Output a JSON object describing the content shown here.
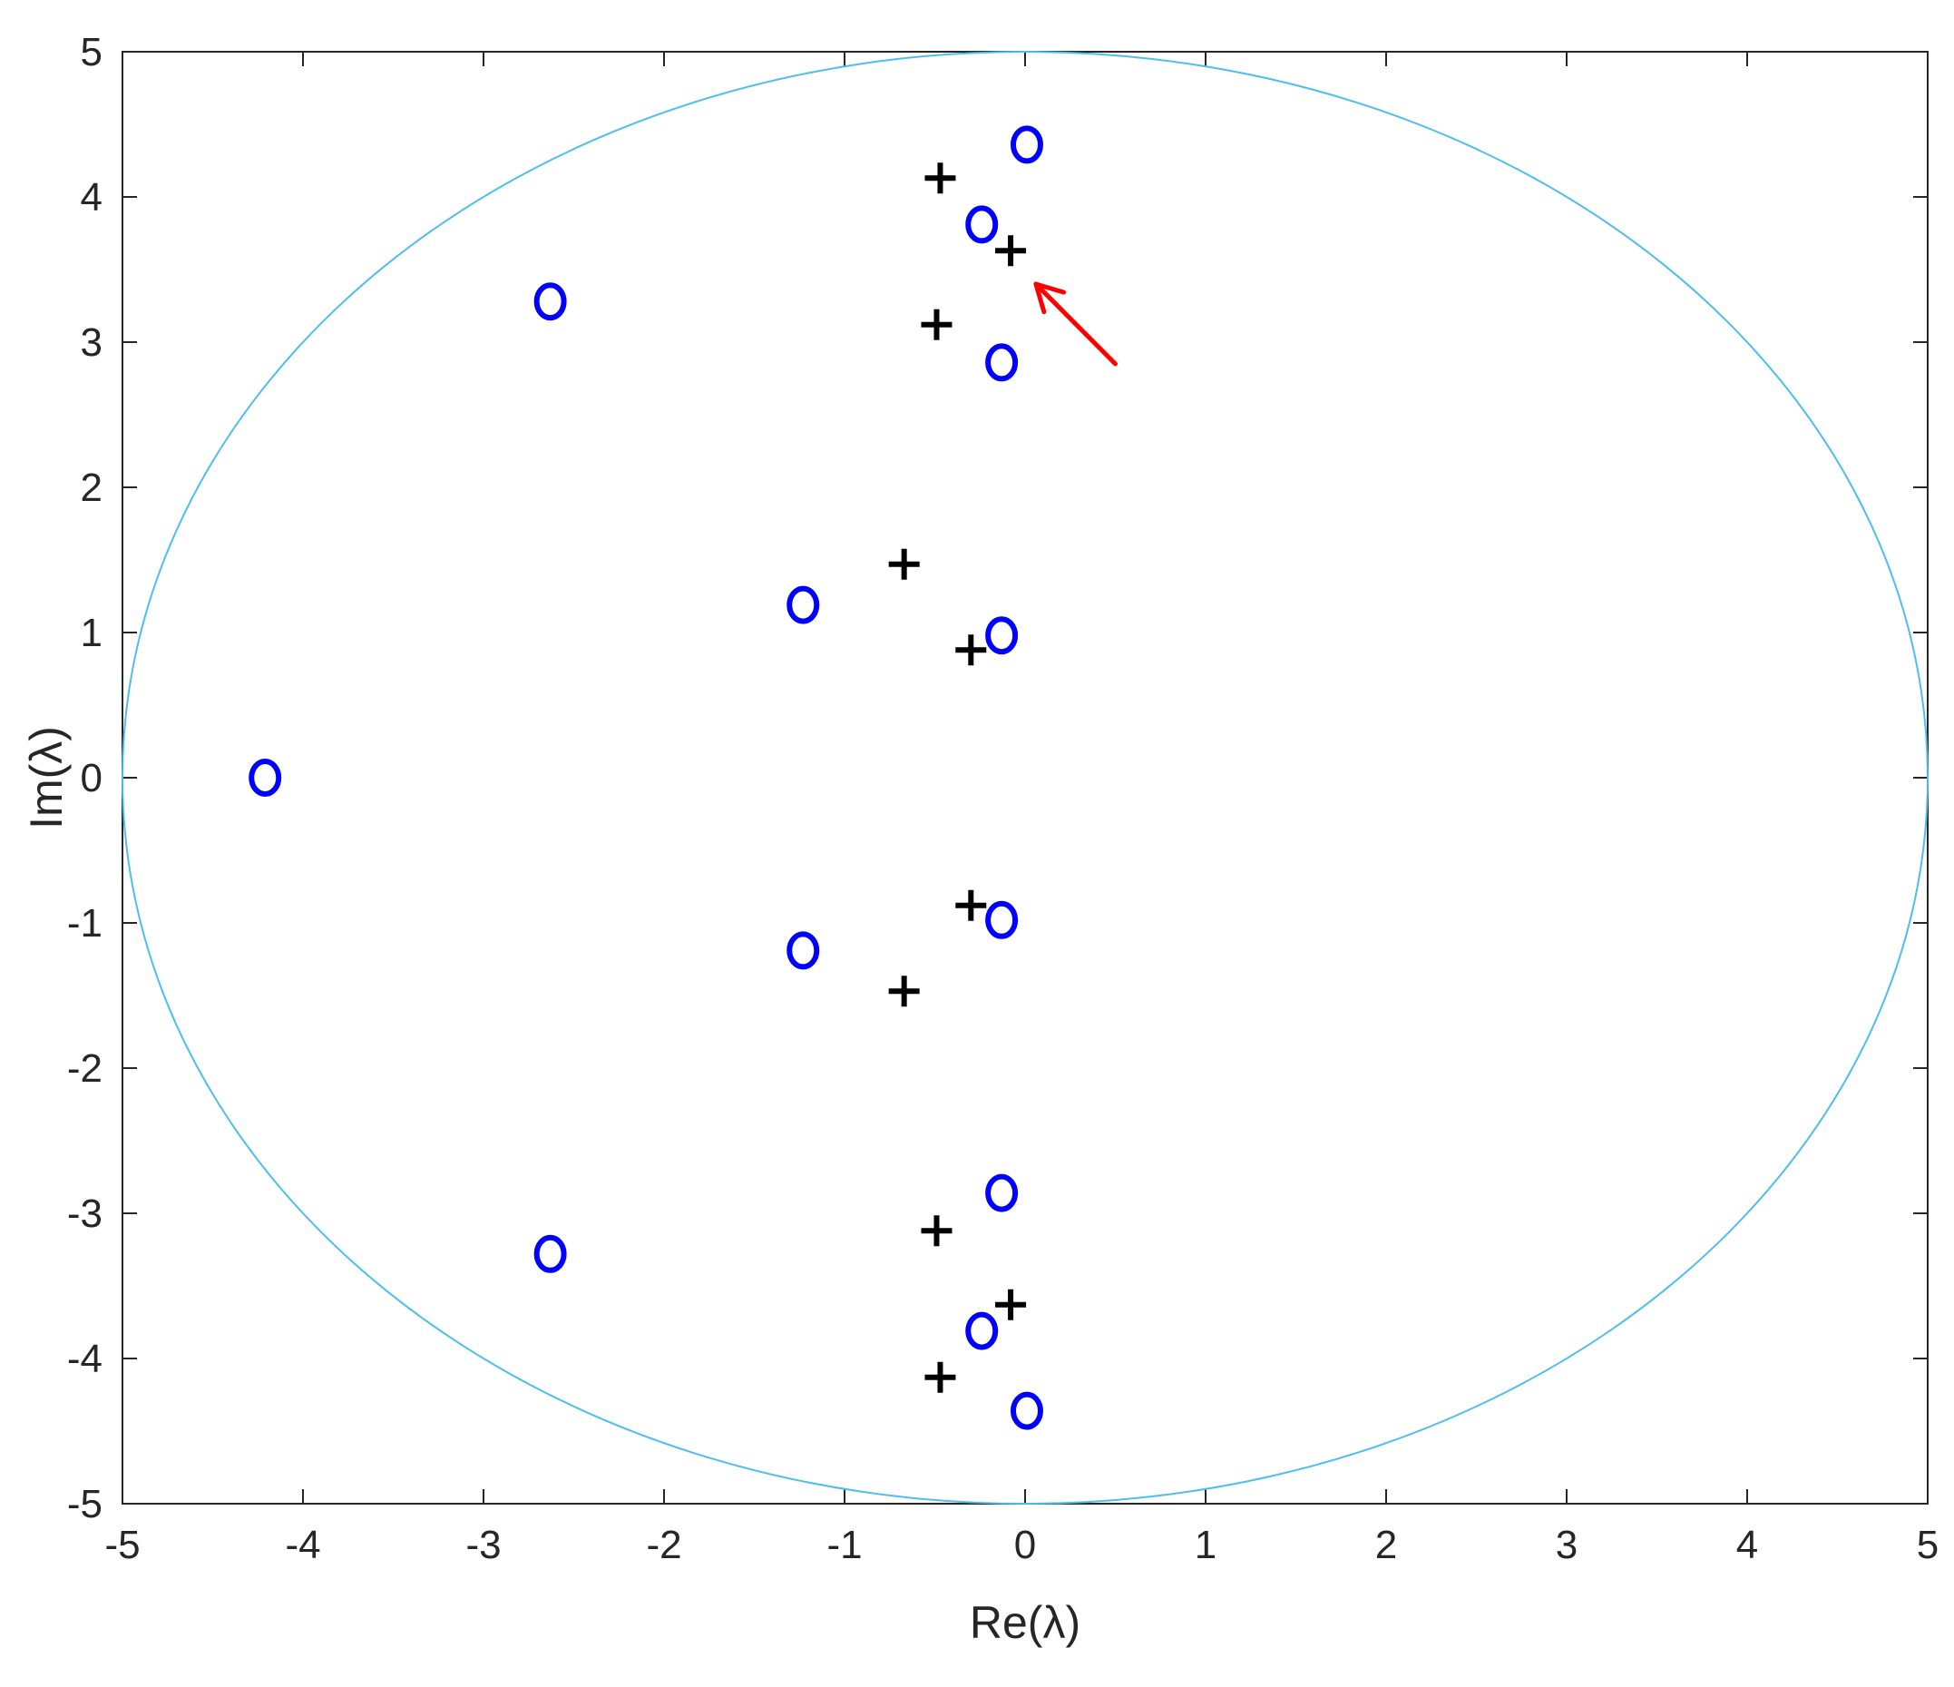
{
  "chart_data": {
    "type": "scatter",
    "title": "",
    "xlabel": "Re(λ)",
    "ylabel": "Im(λ)",
    "xlim": [
      -5,
      5
    ],
    "ylim": [
      -5,
      5
    ],
    "xticks": [
      "-5",
      "-4",
      "-3",
      "-2",
      "-1",
      "0",
      "1",
      "2",
      "3",
      "4",
      "5"
    ],
    "yticks": [
      "-5",
      "-4",
      "-3",
      "-2",
      "-1",
      "0",
      "1",
      "2",
      "3",
      "4",
      "5"
    ],
    "grid": false,
    "legend": "none",
    "circle": {
      "center": [
        0,
        0
      ],
      "radius": 5,
      "color": "#4DBEEE"
    },
    "series": [
      {
        "marker": "circle",
        "color": "#0000FF",
        "points": [
          [
            0.01,
            4.36
          ],
          [
            -0.24,
            3.81
          ],
          [
            -0.13,
            2.86
          ],
          [
            -2.63,
            3.28
          ],
          [
            -1.23,
            1.19
          ],
          [
            -0.13,
            0.98
          ],
          [
            -4.21,
            0.0
          ],
          [
            -0.13,
            -0.98
          ],
          [
            -1.23,
            -1.19
          ],
          [
            -2.63,
            -3.28
          ],
          [
            -0.13,
            -2.86
          ],
          [
            -0.24,
            -3.81
          ],
          [
            0.01,
            -4.36
          ]
        ]
      },
      {
        "marker": "plus",
        "color": "#000000",
        "points": [
          [
            -0.47,
            4.13
          ],
          [
            -0.08,
            3.63
          ],
          [
            -0.49,
            3.12
          ],
          [
            -0.67,
            1.47
          ],
          [
            -0.3,
            0.88
          ],
          [
            -0.3,
            -0.88
          ],
          [
            -0.67,
            -1.47
          ],
          [
            -0.49,
            -3.12
          ],
          [
            -0.08,
            -3.63
          ],
          [
            -0.47,
            -4.13
          ]
        ]
      }
    ],
    "annotations": [
      {
        "type": "arrow",
        "color": "#FF0000",
        "from": [
          0.5,
          2.85
        ],
        "to": [
          0.06,
          3.4
        ]
      }
    ]
  }
}
